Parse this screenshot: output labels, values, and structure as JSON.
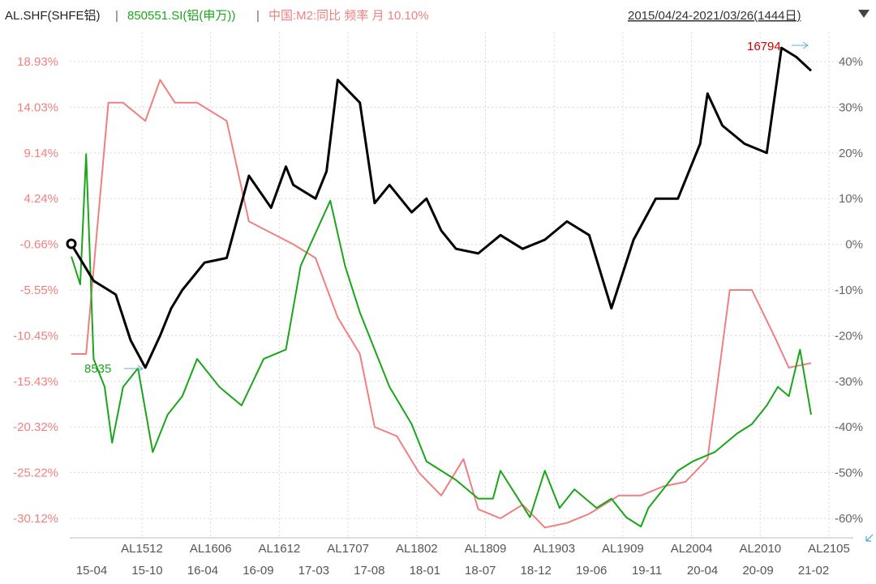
{
  "header": {
    "series_al": "AL.SHF(SHFE铝)",
    "sep": " | ",
    "series_sw": "850551.SI(铝(申万))",
    "series_m2": "中国:M2:同比 频率 月 10.10%",
    "range": "2015/04/24-2021/03/26(1444日)",
    "dropdown_icon": "triangle-down-icon"
  },
  "colors": {
    "al": "#000000",
    "sw": "#1aa51a",
    "m2": "#f08080",
    "left_axis": "#f08080",
    "right_axis": "#666666",
    "annotation_max": "#cc0000",
    "annotation_min": "#1aa51a",
    "grid": "#d8d8d8"
  },
  "chart_data": {
    "type": "line",
    "left_axis": {
      "ticks": [
        "18.93%",
        "14.03%",
        "9.14%",
        "4.24%",
        "-0.66%",
        "-5.55%",
        "-10.45%",
        "-15.43%",
        "-20.32%",
        "-25.22%",
        "-30.12%"
      ],
      "values": [
        18.93,
        14.03,
        9.14,
        4.24,
        -0.66,
        -5.55,
        -10.45,
        -15.43,
        -20.32,
        -25.22,
        -30.12
      ],
      "series": "850551.SI(铝(申万))"
    },
    "right_axis": {
      "ticks": [
        "40%",
        "30%",
        "20%",
        "10%",
        "0%",
        "-10%",
        "-20%",
        "-30%",
        "-40%",
        "-50%",
        "-60%"
      ],
      "values": [
        40,
        30,
        20,
        10,
        0,
        -10,
        -20,
        -30,
        -40,
        -50,
        -60
      ]
    },
    "x_contracts": [
      "AL1512",
      "AL1606",
      "AL1612",
      "AL1707",
      "AL1802",
      "AL1809",
      "AL1903",
      "AL1909",
      "AL2004",
      "AL2010",
      "AL2105"
    ],
    "x_dates": [
      "15-04",
      "15-10",
      "16-04",
      "16-09",
      "17-03",
      "17-08",
      "18-01",
      "18-07",
      "18-12",
      "19-06",
      "19-11",
      "20-04",
      "20-09",
      "21-02"
    ],
    "annotations": {
      "max_label": "16794",
      "min_label": "8535"
    },
    "series": [
      {
        "name": "AL.SHF(SHFE铝)",
        "axis": "right",
        "x": [
          0,
          0.03,
          0.06,
          0.08,
          0.1,
          0.12,
          0.135,
          0.15,
          0.18,
          0.21,
          0.24,
          0.27,
          0.29,
          0.3,
          0.33,
          0.345,
          0.36,
          0.39,
          0.41,
          0.43,
          0.46,
          0.48,
          0.5,
          0.52,
          0.55,
          0.58,
          0.61,
          0.64,
          0.67,
          0.7,
          0.73,
          0.76,
          0.79,
          0.82,
          0.85,
          0.86,
          0.88,
          0.91,
          0.94,
          0.96,
          0.98,
          1.0
        ],
        "y": [
          0,
          -8,
          -11,
          -21,
          -27,
          -20,
          -14,
          -10,
          -4,
          -3,
          15,
          8,
          17,
          13,
          10,
          16,
          36,
          31,
          9,
          13,
          7,
          10,
          3,
          -1,
          -2,
          2,
          -1,
          1,
          5,
          2,
          -14,
          1,
          10,
          10,
          22,
          33,
          26,
          22,
          20,
          43,
          41,
          38
        ]
      },
      {
        "name": "850551.SI(铝(申万))",
        "axis": "left",
        "x": [
          0,
          0.012,
          0.02,
          0.03,
          0.045,
          0.055,
          0.07,
          0.09,
          0.11,
          0.13,
          0.15,
          0.17,
          0.2,
          0.23,
          0.26,
          0.29,
          0.31,
          0.35,
          0.37,
          0.39,
          0.43,
          0.46,
          0.48,
          0.52,
          0.55,
          0.57,
          0.58,
          0.62,
          0.64,
          0.66,
          0.68,
          0.71,
          0.73,
          0.75,
          0.77,
          0.78,
          0.8,
          0.82,
          0.84,
          0.87,
          0.9,
          0.92,
          0.94,
          0.955,
          0.97,
          0.985,
          1.0
        ],
        "y": [
          -2,
          -5,
          9,
          -13,
          -16,
          -22,
          -16,
          -14,
          -23,
          -19,
          -17,
          -13,
          -16,
          -18,
          -13,
          -12,
          -3,
          4,
          -3,
          -8,
          -16,
          -20,
          -24,
          -26,
          -28,
          -28,
          -25,
          -30,
          -25,
          -29,
          -27,
          -29,
          -28,
          -30,
          -31,
          -29,
          -27,
          -25,
          -24,
          -23,
          -21,
          -20,
          -18,
          -16,
          -17,
          -12,
          -19
        ]
      },
      {
        "name": "中国:M2:同比 频率 月",
        "axis": "right",
        "x": [
          0,
          0.02,
          0.05,
          0.07,
          0.1,
          0.12,
          0.14,
          0.17,
          0.21,
          0.24,
          0.3,
          0.33,
          0.36,
          0.39,
          0.41,
          0.44,
          0.47,
          0.5,
          0.53,
          0.55,
          0.58,
          0.61,
          0.64,
          0.67,
          0.7,
          0.72,
          0.74,
          0.77,
          0.8,
          0.83,
          0.86,
          0.89,
          0.92,
          0.95,
          0.97,
          1.0
        ],
        "y": [
          -24,
          -24,
          31,
          31,
          27,
          36,
          31,
          31,
          27,
          5,
          0,
          -3,
          -16,
          -24,
          -40,
          -42,
          -50,
          -55,
          -47,
          -58,
          -60,
          -57,
          -62,
          -61,
          -59,
          -57,
          -55,
          -55,
          -53,
          -52,
          -47,
          -10,
          -10,
          -20,
          -27,
          -26
        ]
      }
    ]
  }
}
